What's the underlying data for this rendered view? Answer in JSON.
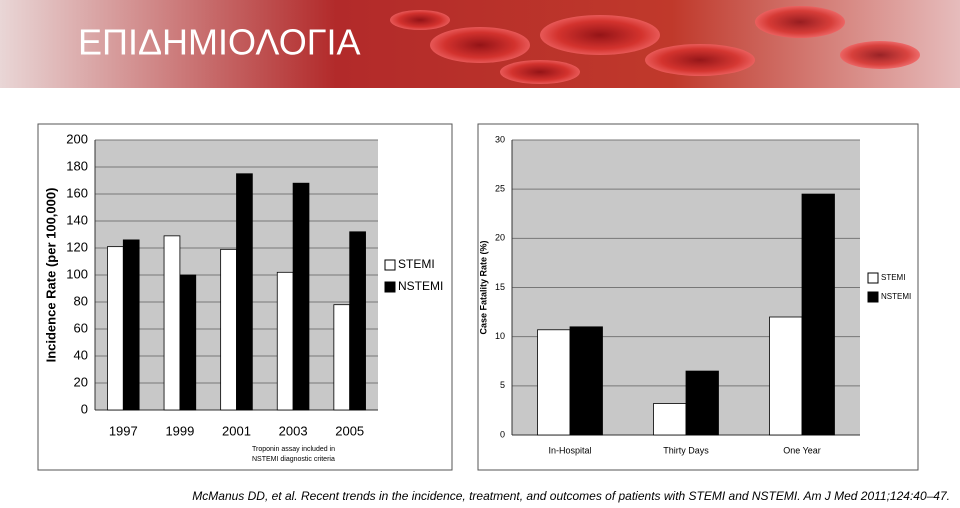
{
  "title": "ΕΠΙΔΗΜΙΟΛΟΓΙΑ",
  "citation": "McManus DD, et al. Recent trends in the incidence, treatment, and outcomes of patients with STEMI and NSTEMI. Am J Med 2011;124:40–47.",
  "chart_data": [
    {
      "type": "bar",
      "y_label": "Incidence Rate (per 100,000)",
      "categories": [
        "1997",
        "1999",
        "2001",
        "2003",
        "2005"
      ],
      "series": [
        {
          "name": "STEMI",
          "color": "#ffffff",
          "values": [
            121,
            129,
            119,
            102,
            78
          ]
        },
        {
          "name": "NSTEMI",
          "color": "#000000",
          "values": [
            126,
            100,
            175,
            168,
            132
          ]
        }
      ],
      "ylim": [
        0,
        200
      ],
      "yticks": [
        0,
        20,
        40,
        60,
        80,
        100,
        120,
        140,
        160,
        180,
        200
      ],
      "grid": true,
      "legend": "right",
      "annotation": [
        "Troponin assay included in",
        "NSTEMI diagnostic criteria"
      ]
    },
    {
      "type": "bar",
      "y_label": "Case Fatality Rate (%)",
      "categories": [
        "In-Hospital",
        "Thirty Days",
        "One Year"
      ],
      "series": [
        {
          "name": "STEMI",
          "color": "#ffffff",
          "values": [
            10.7,
            3.2,
            12
          ]
        },
        {
          "name": "NSTEMI",
          "color": "#000000",
          "values": [
            11,
            6.5,
            24.5
          ]
        }
      ],
      "ylim": [
        0,
        30
      ],
      "yticks": [
        0,
        5,
        10,
        15,
        20,
        25,
        30
      ],
      "grid": true,
      "legend": "right"
    }
  ]
}
